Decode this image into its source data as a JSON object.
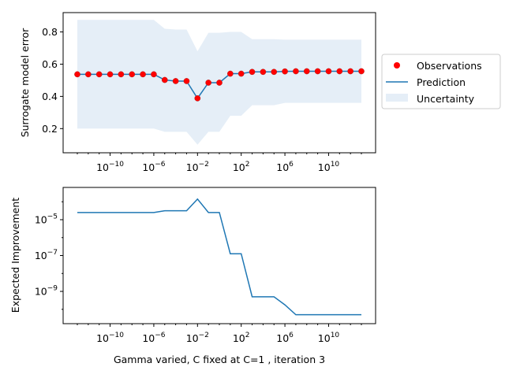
{
  "figure": {
    "xlabel": "Gamma varied, C fixed at C=1 , iteration 3"
  },
  "colors": {
    "observation": "#ff0000",
    "observation_edge": "#b22222",
    "prediction": "#1f77b4",
    "uncertainty": "#e5eef7",
    "axes": "#000000"
  },
  "chart_data": [
    {
      "type": "line",
      "title": "",
      "ylabel": "Surrogate model error",
      "xscale": "log",
      "ylim": [
        0.05,
        0.92
      ],
      "yticks": [
        0.2,
        0.4,
        0.6,
        0.8
      ],
      "ytick_labels": [
        "0.2",
        "0.4",
        "0.6",
        "0.8"
      ],
      "xticks_exponent": [
        -10,
        -6,
        -2,
        2,
        6,
        10
      ],
      "grid": false,
      "legend": {
        "placement": "right-outside",
        "entries": [
          "Observations",
          "Prediction",
          "Uncertainty"
        ]
      },
      "x_exponent": [
        -13,
        -12,
        -11,
        -10,
        -9,
        -8,
        -7,
        -6,
        -5,
        -4,
        -3,
        -2,
        -1,
        0,
        1,
        2,
        3,
        4,
        5,
        6,
        7,
        8,
        9,
        10,
        11,
        12,
        13
      ],
      "series": [
        {
          "name": "Observations",
          "marker": "circle",
          "values": [
            0.537,
            0.537,
            0.537,
            0.537,
            0.537,
            0.537,
            0.537,
            0.537,
            0.502,
            0.495,
            0.495,
            0.388,
            0.485,
            0.485,
            0.541,
            0.541,
            0.552,
            0.552,
            0.552,
            0.555,
            0.556,
            0.556,
            0.556,
            0.556,
            0.556,
            0.556,
            0.556
          ]
        },
        {
          "name": "Prediction",
          "values": [
            0.537,
            0.537,
            0.537,
            0.537,
            0.537,
            0.537,
            0.537,
            0.537,
            0.502,
            0.495,
            0.495,
            0.388,
            0.485,
            0.485,
            0.541,
            0.541,
            0.552,
            0.552,
            0.552,
            0.555,
            0.556,
            0.556,
            0.556,
            0.556,
            0.556,
            0.556,
            0.556
          ]
        },
        {
          "name": "Uncertainty",
          "lower": [
            0.2,
            0.2,
            0.2,
            0.2,
            0.2,
            0.2,
            0.2,
            0.2,
            0.18,
            0.18,
            0.18,
            0.1,
            0.18,
            0.18,
            0.28,
            0.28,
            0.345,
            0.345,
            0.345,
            0.36,
            0.36,
            0.36,
            0.36,
            0.36,
            0.36,
            0.36,
            0.36
          ],
          "upper": [
            0.875,
            0.875,
            0.875,
            0.875,
            0.875,
            0.875,
            0.875,
            0.875,
            0.82,
            0.815,
            0.815,
            0.68,
            0.795,
            0.795,
            0.8,
            0.8,
            0.755,
            0.755,
            0.755,
            0.752,
            0.752,
            0.752,
            0.752,
            0.752,
            0.752,
            0.752,
            0.752
          ]
        }
      ]
    },
    {
      "type": "line",
      "title": "",
      "ylabel": "Expected Improvement",
      "xscale": "log",
      "yscale": "log",
      "ylim_exponent": [
        -10.8,
        -3.2
      ],
      "yticks_exponent": [
        -9,
        -7,
        -5
      ],
      "xticks_exponent": [
        -10,
        -6,
        -2,
        2,
        6,
        10
      ],
      "grid": false,
      "x_exponent": [
        -13,
        -12,
        -11,
        -10,
        -9,
        -8,
        -7,
        -6,
        -5,
        -4,
        -3,
        -2,
        -1,
        0,
        1,
        2,
        3,
        4,
        5,
        6,
        7,
        8,
        9,
        10,
        11,
        12,
        13
      ],
      "series": [
        {
          "name": "Expected Improvement",
          "log10_values": [
            -4.6,
            -4.6,
            -4.6,
            -4.6,
            -4.6,
            -4.6,
            -4.6,
            -4.6,
            -4.5,
            -4.5,
            -4.5,
            -3.85,
            -4.6,
            -4.6,
            -6.9,
            -6.9,
            -9.3,
            -9.3,
            -9.3,
            -9.75,
            -10.3,
            -10.3,
            -10.3,
            -10.3,
            -10.3,
            -10.3,
            -10.3
          ]
        }
      ]
    }
  ]
}
